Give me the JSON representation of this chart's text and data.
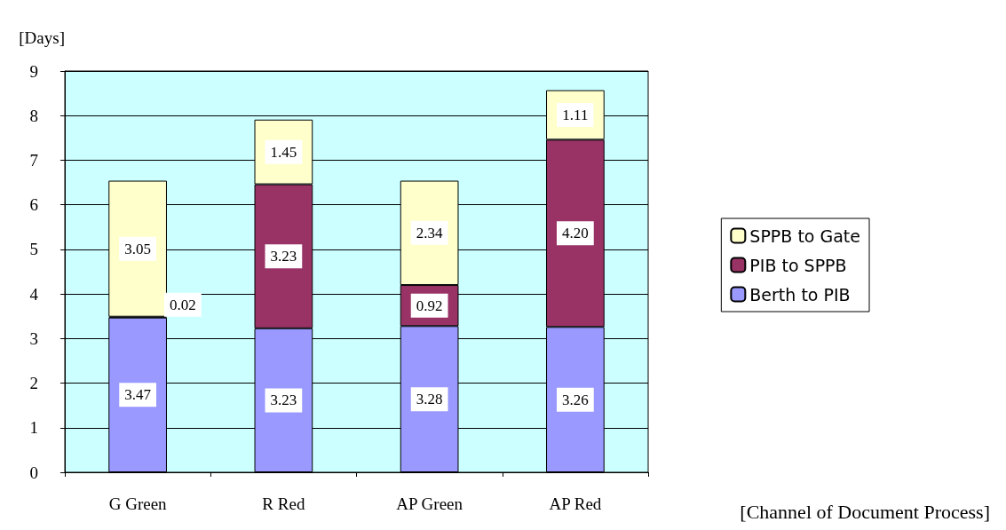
{
  "chart_data": {
    "type": "bar",
    "stacked": true,
    "ylabel": "[Days]",
    "xlabel": "[Channel of Document Process]",
    "categories": [
      "G Green",
      "R Red",
      "AP Green",
      "AP Red"
    ],
    "series": [
      {
        "name": "Berth to PIB",
        "color": "#9999ff",
        "values": [
          3.47,
          3.23,
          3.28,
          3.26
        ]
      },
      {
        "name": "PIB to SPPB",
        "color": "#993366",
        "values": [
          0.02,
          3.23,
          0.92,
          4.2
        ]
      },
      {
        "name": "SPPB to Gate",
        "color": "#ffffcc",
        "values": [
          3.05,
          1.45,
          2.34,
          1.11
        ]
      }
    ],
    "value_labels": [
      [
        "3.47",
        "3.23",
        "3.28",
        "3.26"
      ],
      [
        "0.02",
        "3.23",
        "0.92",
        "4.20"
      ],
      [
        "3.05",
        "1.45",
        "2.34",
        "1.11"
      ]
    ],
    "ylim": [
      0,
      9
    ],
    "yticks": [
      0,
      1,
      2,
      3,
      4,
      5,
      6,
      7,
      8,
      9
    ],
    "grid": "y",
    "legend": "right"
  }
}
